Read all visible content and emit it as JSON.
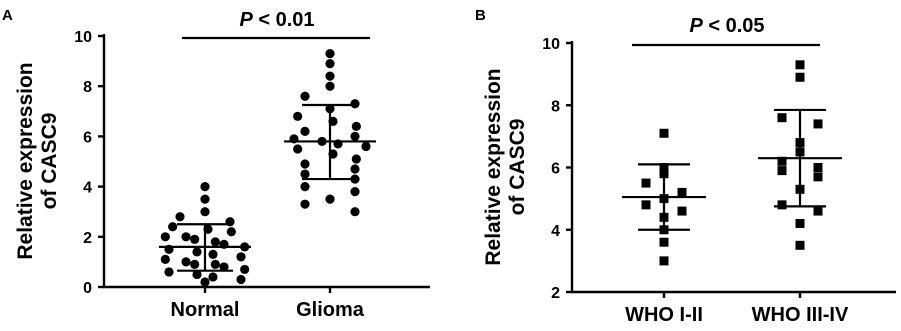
{
  "chart_data": [
    {
      "type": "scatter",
      "panel": "A",
      "ylabel_line1": "Relative expression",
      "ylabel_line2": "of CASC9",
      "ylim": [
        0,
        10
      ],
      "yticks": [
        0,
        2,
        4,
        6,
        8,
        10
      ],
      "categories": [
        "Normal",
        "Glioma"
      ],
      "marker": "circle",
      "significance": {
        "p_italic": "P",
        "p_rest": " < 0.01"
      },
      "series": [
        {
          "category": "Normal",
          "mean": 1.6,
          "sd_low": 0.65,
          "sd_high": 2.5,
          "values": [
            4.0,
            3.5,
            3.0,
            2.8,
            2.6,
            2.4,
            2.3,
            2.2,
            2.0,
            2.0,
            1.9,
            1.8,
            1.7,
            1.6,
            1.5,
            1.4,
            1.3,
            1.2,
            1.1,
            1.0,
            0.9,
            0.9,
            0.8,
            0.7,
            0.6,
            0.5,
            0.4,
            0.3,
            0.2
          ]
        },
        {
          "category": "Glioma",
          "mean": 5.8,
          "sd_low": 4.3,
          "sd_high": 7.25,
          "values": [
            9.3,
            8.9,
            8.4,
            8.0,
            7.6,
            7.3,
            7.1,
            6.8,
            6.6,
            6.4,
            6.2,
            6.0,
            5.9,
            5.8,
            5.7,
            5.6,
            5.5,
            5.3,
            5.1,
            4.9,
            4.7,
            4.5,
            4.3,
            4.0,
            3.8,
            3.5,
            3.3,
            3.0
          ]
        }
      ]
    },
    {
      "type": "scatter",
      "panel": "B",
      "ylabel_line1": "Relative expression",
      "ylabel_line2": "of CASC9",
      "ylim": [
        2,
        10
      ],
      "yticks": [
        2,
        4,
        6,
        8,
        10
      ],
      "categories": [
        "WHO I-II",
        "WHO III-IV"
      ],
      "marker": "square",
      "significance": {
        "p_italic": "P",
        "p_rest": " < 0.05"
      },
      "series": [
        {
          "category": "WHO I-II",
          "mean": 5.05,
          "sd_low": 4.0,
          "sd_high": 6.1,
          "values": [
            7.1,
            6.0,
            5.8,
            5.5,
            5.2,
            5.0,
            4.8,
            4.6,
            4.4,
            4.0,
            3.6,
            3.0
          ]
        },
        {
          "category": "WHO III-IV",
          "mean": 6.3,
          "sd_low": 4.75,
          "sd_high": 7.85,
          "values": [
            9.3,
            8.9,
            7.6,
            7.4,
            6.8,
            6.5,
            6.2,
            6.0,
            5.9,
            5.7,
            5.3,
            4.8,
            4.6,
            4.2,
            3.5
          ]
        }
      ]
    }
  ]
}
